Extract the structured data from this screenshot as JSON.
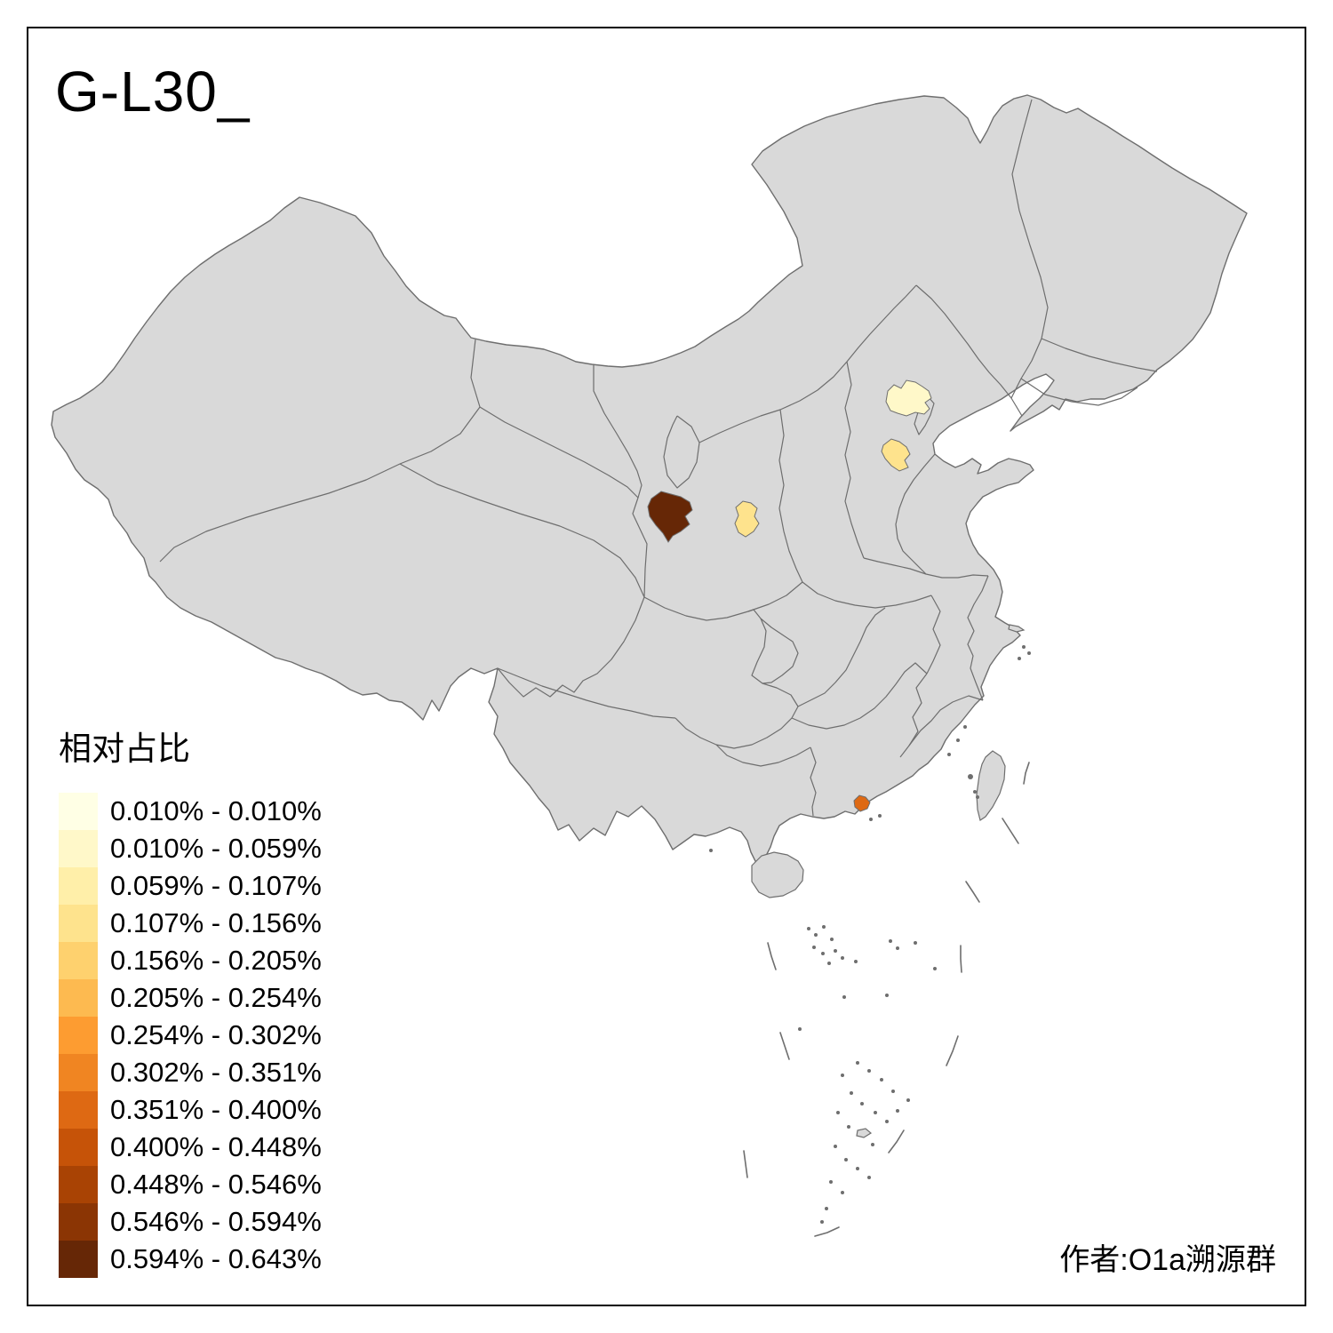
{
  "title": "G-L30_",
  "legend": {
    "title": "相对占比",
    "items": [
      {
        "range": "0.010% - 0.010%",
        "color": "#FFFFE5"
      },
      {
        "range": "0.010% - 0.059%",
        "color": "#FFF8C9"
      },
      {
        "range": "0.059% - 0.107%",
        "color": "#FFEFA9"
      },
      {
        "range": "0.107% - 0.156%",
        "color": "#FEE38D"
      },
      {
        "range": "0.156% - 0.205%",
        "color": "#FED16E"
      },
      {
        "range": "0.205% - 0.254%",
        "color": "#FDBA50"
      },
      {
        "range": "0.254% - 0.302%",
        "color": "#FD9C31"
      },
      {
        "range": "0.302% - 0.351%",
        "color": "#F08522"
      },
      {
        "range": "0.351% - 0.400%",
        "color": "#DE6913"
      },
      {
        "range": "0.400% - 0.448%",
        "color": "#C65308"
      },
      {
        "range": "0.448% - 0.546%",
        "color": "#A94304"
      },
      {
        "range": "0.546% - 0.594%",
        "color": "#8B3504"
      },
      {
        "range": "0.594% - 0.643%",
        "color": "#662706"
      }
    ]
  },
  "attribution": "作者:O1a溯源群",
  "map": {
    "background": "#FFFFFF",
    "land_fill": "#D9D9D9",
    "boundary_color": "#6E6E6E",
    "frame_color": "#000000",
    "highlighted_regions": [
      {
        "id": "beijing-area",
        "bin": "0.010% - 0.059%",
        "color": "#FFF8C9"
      },
      {
        "id": "central-hebei-area",
        "bin": "0.107% - 0.156%",
        "color": "#FEE38D"
      },
      {
        "id": "central-shaanxi-area",
        "bin": "0.107% - 0.156%",
        "color": "#FEE38D"
      },
      {
        "id": "southeast-gansu-area",
        "bin": "0.594% - 0.643%",
        "color": "#662706"
      },
      {
        "id": "pearl-river-delta-area",
        "bin": "0.351% - 0.400%",
        "color": "#DE6913"
      }
    ]
  },
  "chart_data": {
    "type": "choropleth-map",
    "title": "G-L30_",
    "legend_title": "相对占比",
    "unit": "%",
    "bins": [
      "0.010% - 0.010%",
      "0.010% - 0.059%",
      "0.059% - 0.107%",
      "0.107% - 0.156%",
      "0.156% - 0.205%",
      "0.205% - 0.254%",
      "0.254% - 0.302%",
      "0.302% - 0.351%",
      "0.351% - 0.400%",
      "0.400% - 0.448%",
      "0.448% - 0.546%",
      "0.546% - 0.594%",
      "0.594% - 0.643%"
    ],
    "shaded_regions": [
      {
        "location": "Beijing area",
        "bin": "0.010% - 0.059%"
      },
      {
        "location": "Central Hebei area",
        "bin": "0.107% - 0.156%"
      },
      {
        "location": "Central Shaanxi area",
        "bin": "0.107% - 0.156%"
      },
      {
        "location": "Southeast Gansu area",
        "bin": "0.594% - 0.643%"
      },
      {
        "location": "Pearl River Delta area",
        "bin": "0.351% - 0.400%"
      }
    ]
  }
}
